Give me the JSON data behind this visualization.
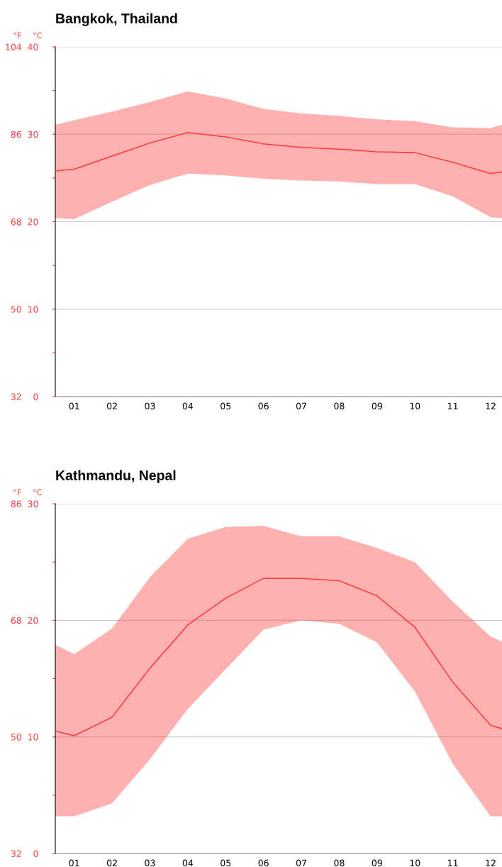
{
  "chart_data": [
    {
      "type": "line",
      "title": "Bangkok, Thailand",
      "ylabel": "°C",
      "y2label": "°F",
      "x": [
        0.5,
        1,
        2,
        3,
        4,
        5,
        6,
        7,
        8,
        9,
        10,
        11,
        12,
        12.3
      ],
      "xlim": [
        0.5,
        12.3
      ],
      "xticks": [
        {
          "value": 1,
          "label": "01"
        },
        {
          "value": 2,
          "label": "02"
        },
        {
          "value": 3,
          "label": "03"
        },
        {
          "value": 4,
          "label": "04"
        },
        {
          "value": 5,
          "label": "05"
        },
        {
          "value": 6,
          "label": "06"
        },
        {
          "value": 7,
          "label": "07"
        },
        {
          "value": 8,
          "label": "08"
        },
        {
          "value": 9,
          "label": "09"
        },
        {
          "value": 10,
          "label": "10"
        },
        {
          "value": 11,
          "label": "11"
        },
        {
          "value": 12,
          "label": "12"
        }
      ],
      "ylim": [
        0,
        40
      ],
      "yticks": [
        0,
        {
          "value": 5,
          "label": null
        },
        10,
        {
          "value": 15,
          "label": null
        },
        20,
        {
          "value": 25,
          "label": null
        },
        30,
        {
          "value": 35,
          "label": null
        },
        40
      ],
      "y2lim": [
        32,
        104
      ],
      "y2ticks": [
        32,
        50,
        68,
        86,
        104
      ],
      "grid": "y",
      "series": [
        {
          "color": "#ff3b3b",
          "values": [
            25.8,
            26.0,
            27.5,
            29.0,
            30.2,
            29.7,
            28.9,
            28.5,
            28.3,
            28.0,
            27.9,
            26.8,
            25.5,
            25.7
          ],
          "upper": [
            31.1,
            31.6,
            32.6,
            33.7,
            34.9,
            34.1,
            32.9,
            32.4,
            32.1,
            31.7,
            31.5,
            30.8,
            30.7,
            31.1
          ],
          "lower": [
            20.4,
            20.3,
            22.3,
            24.2,
            25.5,
            25.3,
            24.9,
            24.7,
            24.6,
            24.3,
            24.3,
            22.9,
            20.5,
            20.4
          ]
        }
      ]
    },
    {
      "type": "line",
      "title": "Kathmandu, Nepal",
      "ylabel": "°C",
      "y2label": "°F",
      "x": [
        0.5,
        1,
        2,
        3,
        4,
        5,
        6,
        7,
        8,
        9,
        10,
        11,
        12,
        12.3
      ],
      "xlim": [
        0.5,
        12.3
      ],
      "xticks": [
        {
          "value": 1,
          "label": "01"
        },
        {
          "value": 2,
          "label": "02"
        },
        {
          "value": 3,
          "label": "03"
        },
        {
          "value": 4,
          "label": "04"
        },
        {
          "value": 5,
          "label": "05"
        },
        {
          "value": 6,
          "label": "06"
        },
        {
          "value": 7,
          "label": "07"
        },
        {
          "value": 8,
          "label": "08"
        },
        {
          "value": 9,
          "label": "09"
        },
        {
          "value": 10,
          "label": "10"
        },
        {
          "value": 11,
          "label": "11"
        },
        {
          "value": 12,
          "label": "12"
        }
      ],
      "ylim": [
        0,
        30
      ],
      "yticks": [
        0,
        {
          "value": 5,
          "label": null
        },
        10,
        {
          "value": 15,
          "label": null
        },
        20,
        {
          "value": 25,
          "label": null
        },
        30
      ],
      "y2lim": [
        32,
        86
      ],
      "y2ticks": [
        32,
        50,
        68,
        86
      ],
      "grid": "y",
      "series": [
        {
          "color": "#ff3b3b",
          "values": [
            10.5,
            10.1,
            11.7,
            15.9,
            19.6,
            21.9,
            23.6,
            23.6,
            23.4,
            22.1,
            19.4,
            14.7,
            11.0,
            10.7
          ],
          "upper": [
            17.9,
            17.1,
            19.3,
            23.7,
            27.0,
            28.0,
            28.1,
            27.2,
            27.2,
            26.2,
            25.0,
            21.6,
            18.6,
            18.2
          ],
          "lower": [
            3.2,
            3.2,
            4.3,
            8.1,
            12.4,
            15.8,
            19.2,
            20.0,
            19.7,
            18.1,
            13.9,
            7.7,
            3.2,
            3.2
          ]
        }
      ]
    }
  ]
}
